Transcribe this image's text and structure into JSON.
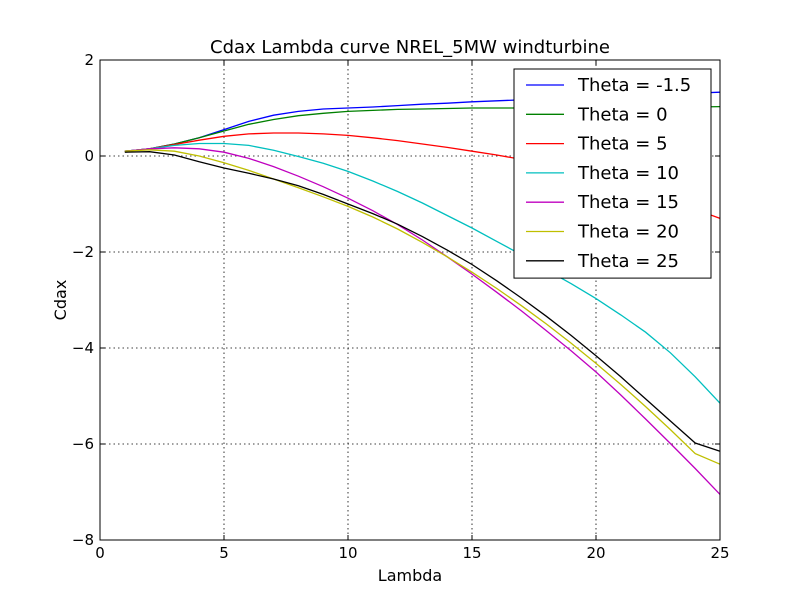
{
  "chart_data": {
    "type": "line",
    "title": "Cdax Lambda curve NREL_5MW windturbine",
    "xlabel": "Lambda",
    "ylabel": "Cdax",
    "xlim": [
      0,
      25
    ],
    "ylim": [
      -8,
      2
    ],
    "xticks": [
      "0",
      "5",
      "10",
      "15",
      "20",
      "25"
    ],
    "yticks": [
      "2",
      "0",
      "−2",
      "−4",
      "−6",
      "−8"
    ],
    "grid": true,
    "legend_position": "top-right",
    "series": [
      {
        "name": "Theta = -1.5",
        "color": "#0000ff",
        "x": [
          1,
          2,
          3,
          4,
          5,
          6,
          7,
          8,
          9,
          10,
          11,
          12,
          13,
          14,
          15,
          16,
          17,
          18,
          19,
          20,
          21,
          22,
          23,
          24,
          25
        ],
        "y": [
          0.1,
          0.15,
          0.25,
          0.38,
          0.55,
          0.72,
          0.85,
          0.93,
          0.98,
          1.0,
          1.02,
          1.05,
          1.08,
          1.1,
          1.13,
          1.15,
          1.17,
          1.19,
          1.21,
          1.23,
          1.25,
          1.27,
          1.29,
          1.31,
          1.33
        ]
      },
      {
        "name": "Theta = 0",
        "color": "#008000",
        "x": [
          1,
          2,
          3,
          4,
          5,
          6,
          7,
          8,
          9,
          10,
          11,
          12,
          13,
          14,
          15,
          16,
          17,
          18,
          19,
          20,
          21,
          22,
          23,
          24,
          25
        ],
        "y": [
          0.1,
          0.15,
          0.25,
          0.38,
          0.52,
          0.66,
          0.76,
          0.84,
          0.89,
          0.93,
          0.95,
          0.97,
          0.98,
          0.99,
          1.0,
          1.0,
          1.0,
          1.0,
          1.0,
          1.0,
          1.01,
          1.01,
          1.02,
          1.02,
          1.03
        ]
      },
      {
        "name": "Theta = 5",
        "color": "#ff0000",
        "x": [
          1,
          2,
          3,
          4,
          5,
          6,
          7,
          8,
          9,
          10,
          11,
          12,
          13,
          14,
          15,
          16,
          17,
          18,
          19,
          20,
          21,
          22,
          23,
          24,
          25
        ],
        "y": [
          0.1,
          0.15,
          0.24,
          0.33,
          0.41,
          0.46,
          0.48,
          0.48,
          0.46,
          0.43,
          0.38,
          0.32,
          0.25,
          0.18,
          0.1,
          0.02,
          -0.07,
          -0.17,
          -0.28,
          -0.42,
          -0.57,
          -0.74,
          -0.92,
          -1.11,
          -1.3
        ]
      },
      {
        "name": "Theta = 10",
        "color": "#00bfbf",
        "x": [
          1,
          2,
          3,
          4,
          5,
          6,
          7,
          8,
          9,
          10,
          11,
          12,
          13,
          14,
          15,
          16,
          17,
          18,
          19,
          20,
          21,
          22,
          23,
          24,
          25
        ],
        "y": [
          0.1,
          0.15,
          0.22,
          0.26,
          0.26,
          0.22,
          0.12,
          -0.01,
          -0.15,
          -0.32,
          -0.52,
          -0.74,
          -0.98,
          -1.24,
          -1.5,
          -1.78,
          -2.06,
          -2.37,
          -2.66,
          -2.97,
          -3.31,
          -3.67,
          -4.1,
          -4.6,
          -5.15
        ]
      },
      {
        "name": "Theta = 15",
        "color": "#bf00bf",
        "x": [
          1,
          2,
          3,
          4,
          5,
          6,
          7,
          8,
          9,
          10,
          11,
          12,
          13,
          14,
          15,
          16,
          17,
          18,
          19,
          20,
          21,
          22,
          23,
          24,
          25
        ],
        "y": [
          0.1,
          0.15,
          0.17,
          0.15,
          0.08,
          -0.05,
          -0.22,
          -0.42,
          -0.64,
          -0.88,
          -1.14,
          -1.43,
          -1.75,
          -2.1,
          -2.46,
          -2.84,
          -3.23,
          -3.64,
          -4.06,
          -4.5,
          -4.98,
          -5.48,
          -5.99,
          -6.51,
          -7.05
        ]
      },
      {
        "name": "Theta = 20",
        "color": "#bfbf00",
        "x": [
          1,
          2,
          3,
          4,
          5,
          6,
          7,
          8,
          9,
          10,
          11,
          12,
          13,
          14,
          15,
          16,
          17,
          18,
          19,
          20,
          21,
          22,
          23,
          24,
          25
        ],
        "y": [
          0.1,
          0.13,
          0.1,
          0.0,
          -0.14,
          -0.3,
          -0.48,
          -0.66,
          -0.85,
          -1.05,
          -1.27,
          -1.52,
          -1.8,
          -2.1,
          -2.42,
          -2.76,
          -3.12,
          -3.5,
          -3.9,
          -4.32,
          -4.76,
          -5.22,
          -5.7,
          -6.2,
          -6.42
        ]
      },
      {
        "name": "Theta = 25",
        "color": "#000000",
        "x": [
          1,
          2,
          3,
          4,
          5,
          6,
          7,
          8,
          9,
          10,
          11,
          12,
          13,
          14,
          15,
          16,
          17,
          18,
          19,
          20,
          21,
          22,
          23,
          24,
          25
        ],
        "y": [
          0.08,
          0.09,
          0.02,
          -0.12,
          -0.25,
          -0.36,
          -0.48,
          -0.62,
          -0.8,
          -1.0,
          -1.2,
          -1.42,
          -1.68,
          -1.96,
          -2.26,
          -2.6,
          -2.96,
          -3.34,
          -3.74,
          -4.16,
          -4.6,
          -5.06,
          -5.52,
          -5.98,
          -6.15
        ]
      }
    ]
  }
}
